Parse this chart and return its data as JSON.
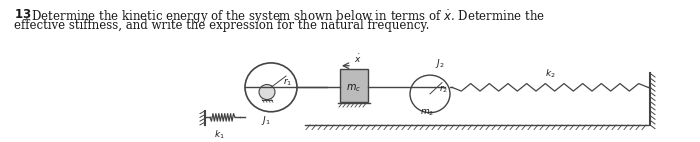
{
  "bg_color": "#ffffff",
  "text_color": "#1a1a1a",
  "diagram_color": "#444444",
  "fig_width": 7.0,
  "fig_height": 1.42,
  "dpi": 100,
  "text_line1_normal": ". Determine the kinetic energy of the system shown below in terms of ",
  "text_line1_end": ". Determine the",
  "text_line2": "effective stiffness, and write the expression for the natural frequency.",
  "font_size_text": 8.5,
  "font_size_label": 6.5
}
